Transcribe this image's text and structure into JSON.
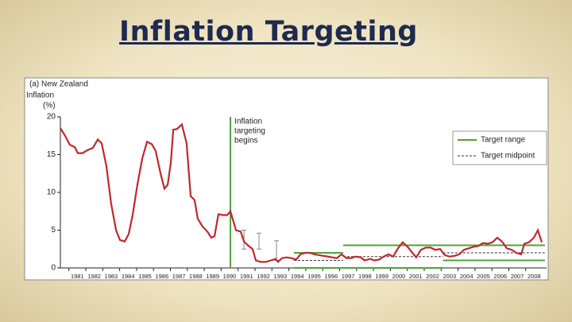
{
  "slide_title": "Inflation Targeting",
  "chart_data": {
    "type": "line",
    "subtitle": "(a) New Zealand",
    "y_label": [
      "Inflation",
      "(%)"
    ],
    "color": "#c0282d",
    "x": [
      1980.0,
      1980.28,
      1980.56,
      1980.85,
      1981.03,
      1981.31,
      1981.6,
      1981.92,
      1982.21,
      1982.44,
      1982.72,
      1983.0,
      1983.29,
      1983.52,
      1983.8,
      1984.04,
      1984.27,
      1984.55,
      1984.84,
      1985.12,
      1985.4,
      1985.63,
      1985.92,
      1986.15,
      1986.34,
      1986.53,
      1986.67,
      1986.9,
      1987.18,
      1987.46,
      1987.7,
      1987.93,
      1988.12,
      1988.4,
      1988.69,
      1988.92,
      1989.11,
      1989.34,
      1989.62,
      1989.86,
      1990.05,
      1990.38,
      1990.66,
      1990.85,
      1991.08,
      1991.36,
      1991.55,
      1991.83,
      1992.16,
      1992.44,
      1992.72,
      1992.86,
      1993.1,
      1993.38,
      1993.66,
      1993.94,
      1994.18,
      1994.46,
      1994.74,
      1995.02,
      1995.26,
      1995.54,
      1995.82,
      1996.06,
      1996.34,
      1996.62,
      1996.9,
      1997.18,
      1997.46,
      1997.75,
      1997.98,
      1998.31,
      1998.54,
      1998.83,
      1999.11,
      1999.39,
      1999.67,
      1999.95,
      2000.23,
      2000.52,
      2000.8,
      2001.03,
      2001.31,
      2001.6,
      2001.88,
      2002.16,
      2002.44,
      2002.72,
      2003.0,
      2003.29,
      2003.57,
      2003.85,
      2004.13,
      2004.41,
      2004.69,
      2004.98,
      2005.26,
      2005.54,
      2005.82,
      2006.1,
      2006.38,
      2006.67,
      2006.95,
      2007.23,
      2007.42,
      2007.7,
      2007.98,
      2008.22,
      2008.45
    ],
    "values": [
      18.5,
      17.5,
      16.3,
      16.0,
      15.2,
      15.2,
      15.6,
      15.9,
      17.0,
      16.5,
      13.5,
      8.5,
      5.0,
      3.7,
      3.5,
      4.5,
      7.0,
      11,
      14.5,
      16.7,
      16.4,
      15.5,
      12.5,
      10.5,
      11,
      14,
      18.3,
      18.4,
      19,
      16.5,
      9.5,
      9.0,
      6.5,
      5.5,
      4.8,
      4.0,
      4.2,
      7.1,
      7.0,
      7.0,
      7.5,
      5.0,
      4.8,
      3.5,
      3.0,
      2.5,
      1.0,
      0.8,
      0.8,
      1.0,
      1.2,
      0.8,
      1.3,
      1.4,
      1.3,
      1.1,
      1.8,
      2.0,
      2.0,
      1.8,
      1.7,
      1.6,
      1.5,
      1.4,
      1.3,
      1.8,
      1.3,
      1.3,
      1.5,
      1.4,
      1.0,
      1.2,
      1.0,
      1.1,
      1.5,
      1.8,
      1.5,
      2.6,
      3.4,
      2.8,
      2.0,
      1.4,
      2.4,
      2.7,
      2.7,
      2.4,
      2.5,
      1.7,
      1.5,
      1.6,
      1.8,
      2.4,
      2.6,
      2.8,
      2.9,
      3.3,
      3.2,
      3.4,
      4.0,
      3.5,
      2.6,
      2.4,
      2.0,
      1.8,
      3.2,
      3.4,
      4.0,
      5.0,
      3.4
    ],
    "xlim": [
      1980,
      2008.64
    ],
    "xticks": [
      1981,
      1982,
      1983,
      1984,
      1985,
      1986,
      1987,
      1988,
      1989,
      1990,
      1991,
      1992,
      1993,
      1994,
      1995,
      1996,
      1997,
      1998,
      1999,
      2000,
      2001,
      2002,
      2003,
      2004,
      2005,
      2006,
      2007,
      2008
    ],
    "ylim": [
      0,
      20
    ],
    "yticks": [
      0,
      5,
      10,
      15,
      20
    ],
    "target_range": {
      "name": "Target range",
      "color": "#4fa33a",
      "segments": [
        {
          "from": 1993.8,
          "to": 1996.71,
          "low": 0,
          "high": 2
        },
        {
          "from": 1996.71,
          "to": 2002.62,
          "low": 0,
          "high": 3
        },
        {
          "from": 2002.62,
          "to": 2008.64,
          "low": 1,
          "high": 3
        }
      ]
    },
    "target_midpoint": {
      "name": "Target midpoint",
      "color": "#333333",
      "segments": [
        {
          "from": 1993.8,
          "to": 1996.71,
          "value": 1
        },
        {
          "from": 1996.71,
          "to": 2002.62,
          "value": 1.5
        },
        {
          "from": 2002.62,
          "to": 2008.64,
          "value": 2
        }
      ]
    },
    "early_targets": [
      {
        "x": 1990.85,
        "low": 2.5,
        "high": 5
      },
      {
        "x": 1991.74,
        "low": 2.5,
        "high": 4.6
      },
      {
        "x": 1992.77,
        "low": 1,
        "high": 3.6
      }
    ],
    "annotation": {
      "x": 1990.05,
      "lines": [
        "Inflation",
        "targeting",
        "begins"
      ]
    }
  }
}
